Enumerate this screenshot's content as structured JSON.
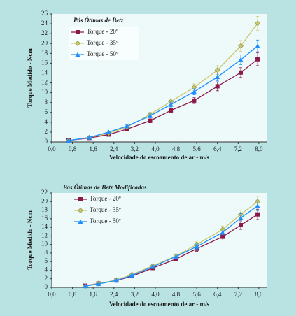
{
  "chart_data": [
    {
      "type": "line",
      "title": "Pás Ótimas de Betz",
      "xlabel": "Velocidade do escoamento de ar - m/s",
      "ylabel": "Torque Medido - Ncm",
      "x": [
        0.65,
        1.45,
        2.2,
        2.9,
        3.8,
        4.6,
        5.5,
        6.4,
        7.3,
        7.95
      ],
      "series": [
        {
          "name": "Torque - 20º",
          "color": "#8b1a4a",
          "marker": "square",
          "values": [
            0.3,
            0.8,
            1.5,
            2.6,
            4.3,
            6.4,
            8.4,
            11.3,
            14.1,
            16.8
          ],
          "errors": [
            0.1,
            0.1,
            0.2,
            0.3,
            0.4,
            0.5,
            0.6,
            0.9,
            1.0,
            1.3
          ]
        },
        {
          "name": "Torque - 35º",
          "color": "#c9c86a",
          "marker": "diamond",
          "values": [
            0.3,
            0.9,
            1.8,
            3.0,
            5.6,
            8.2,
            11.1,
            14.6,
            19.5,
            24.1
          ],
          "errors": [
            0.1,
            0.1,
            0.2,
            0.3,
            0.4,
            0.5,
            0.7,
            0.9,
            1.1,
            1.4
          ]
        },
        {
          "name": "Torque - 50º",
          "color": "#1e8fff",
          "marker": "triangle",
          "values": [
            0.3,
            0.9,
            2.0,
            3.2,
            5.3,
            7.6,
            10.2,
            13.2,
            16.7,
            19.5
          ],
          "errors": [
            0.1,
            0.1,
            0.2,
            0.3,
            0.4,
            0.5,
            0.6,
            0.8,
            1.0,
            1.2
          ]
        }
      ],
      "xlim": [
        0,
        8.3
      ],
      "xticks": [
        {
          "value": 0,
          "label": "0,0"
        },
        {
          "value": 0.8,
          "label": "0,8"
        },
        {
          "value": 1.6,
          "label": "1,6"
        },
        {
          "value": 2.4,
          "label": "2,4"
        },
        {
          "value": 3.2,
          "label": "3,2"
        },
        {
          "value": 4.0,
          "label": "4,0"
        },
        {
          "value": 4.8,
          "label": "4,8"
        },
        {
          "value": 5.6,
          "label": "5,6"
        },
        {
          "value": 6.4,
          "label": "6,4"
        },
        {
          "value": 7.2,
          "label": "7,2"
        },
        {
          "value": 8.0,
          "label": "8,0"
        }
      ],
      "ylim": [
        0,
        26
      ],
      "yticks": [
        0,
        2,
        4,
        6,
        8,
        10,
        12,
        14,
        16,
        18,
        20,
        22,
        24,
        26
      ],
      "legend": "upper left"
    },
    {
      "type": "line",
      "title": "Pás Ótimas de Betz Modificadas",
      "xlabel": "Velocidade do escoamento de ar - m/s",
      "ylabel": "Torque Medido - Ncm",
      "x": [
        1.3,
        1.8,
        2.5,
        3.1,
        3.9,
        4.8,
        5.6,
        6.6,
        7.3,
        7.95
      ],
      "series": [
        {
          "name": "Torque - 20º",
          "color": "#8b1a4a",
          "marker": "square",
          "values": [
            0.4,
            0.9,
            1.6,
            2.6,
            4.5,
            6.6,
            9.0,
            11.8,
            14.5,
            17.0
          ],
          "errors": [
            0.1,
            0.1,
            0.2,
            0.3,
            0.4,
            0.5,
            0.6,
            0.8,
            1.0,
            1.2
          ]
        },
        {
          "name": "Torque - 35º",
          "color": "#c9c86a",
          "marker": "diamond",
          "values": [
            0.3,
            0.9,
            1.7,
            3.0,
            5.0,
            7.3,
            10.0,
            13.5,
            17.0,
            20.0
          ],
          "errors": [
            0.1,
            0.1,
            0.2,
            0.3,
            0.4,
            0.5,
            0.6,
            0.8,
            1.0,
            1.2
          ]
        },
        {
          "name": "Torque - 50º",
          "color": "#1e8fff",
          "marker": "triangle",
          "values": [
            0.3,
            0.8,
            1.6,
            2.8,
            4.8,
            7.2,
            9.5,
            12.8,
            16.2,
            19.0
          ],
          "errors": [
            0.1,
            0.1,
            0.2,
            0.3,
            0.4,
            0.5,
            0.6,
            0.8,
            1.0,
            1.1
          ]
        }
      ],
      "xlim": [
        0,
        8.3
      ],
      "xticks": [
        {
          "value": 0,
          "label": "0,0"
        },
        {
          "value": 0.8,
          "label": "0,8"
        },
        {
          "value": 1.6,
          "label": "1,6"
        },
        {
          "value": 2.4,
          "label": "2,4"
        },
        {
          "value": 3.2,
          "label": "3,2"
        },
        {
          "value": 4.0,
          "label": "4,0"
        },
        {
          "value": 4.8,
          "label": "4,8"
        },
        {
          "value": 5.6,
          "label": "5,6"
        },
        {
          "value": 6.4,
          "label": "6,4"
        },
        {
          "value": 7.2,
          "label": "7,2"
        },
        {
          "value": 8.0,
          "label": "8,0"
        }
      ],
      "ylim": [
        0,
        22
      ],
      "yticks": [
        0,
        2,
        4,
        6,
        8,
        10,
        12,
        14,
        16,
        18,
        20,
        22
      ],
      "legend": "upper left"
    }
  ]
}
